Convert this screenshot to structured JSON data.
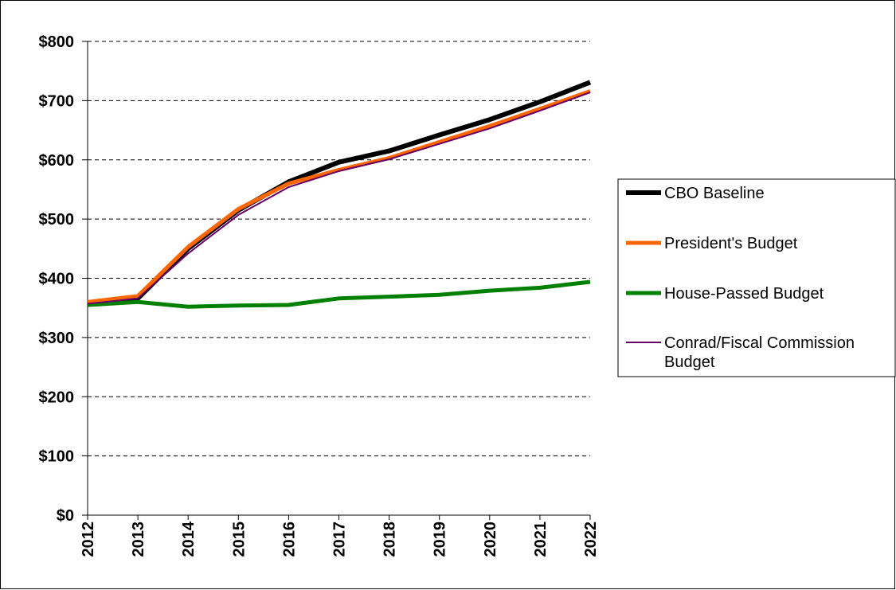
{
  "chart_data": {
    "type": "line",
    "title": "",
    "xlabel": "",
    "ylabel": "",
    "ylim": [
      0,
      800
    ],
    "y_ticks": [
      "$0",
      "$100",
      "$200",
      "$300",
      "$400",
      "$500",
      "$600",
      "$700",
      "$800"
    ],
    "x": [
      "2012",
      "2013",
      "2014",
      "2015",
      "2016",
      "2017",
      "2018",
      "2019",
      "2020",
      "2021",
      "2022"
    ],
    "grid": "horizontal dashed",
    "legend_position": "right",
    "series": [
      {
        "name": "CBO Baseline",
        "color": "#000000",
        "width": 6,
        "values": [
          356,
          366,
          450,
          515,
          563,
          596,
          615,
          642,
          668,
          698,
          731
        ]
      },
      {
        "name": "President's Budget",
        "color": "#ff6600",
        "width": 5,
        "values": [
          360,
          370,
          453,
          517,
          560,
          583,
          603,
          630,
          657,
          686,
          716
        ]
      },
      {
        "name": "House-Passed Budget",
        "color": "#008000",
        "width": 5,
        "values": [
          355,
          360,
          352,
          354,
          355,
          366,
          369,
          372,
          379,
          384,
          394
        ]
      },
      {
        "name": "Conrad/Fiscal Commission Budget",
        "color": "#660066",
        "width": 2,
        "label_lines": [
          "Conrad/Fiscal Commission",
          "Budget"
        ],
        "values": [
          357,
          366,
          442,
          507,
          554,
          581,
          601,
          627,
          653,
          683,
          714
        ]
      }
    ]
  }
}
